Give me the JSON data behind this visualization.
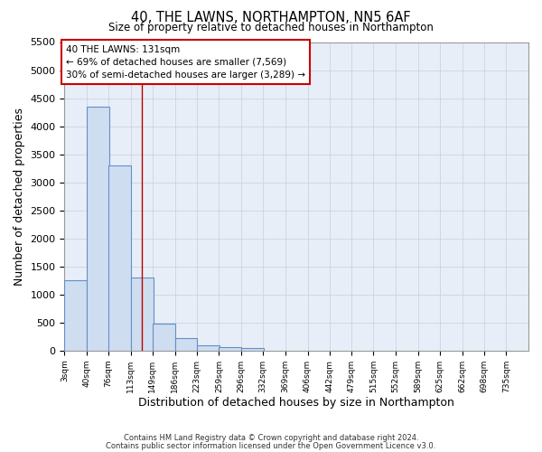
{
  "title1": "40, THE LAWNS, NORTHAMPTON, NN5 6AF",
  "title2": "Size of property relative to detached houses in Northampton",
  "xlabel": "Distribution of detached houses by size in Northampton",
  "ylabel": "Number of detached properties",
  "footer1": "Contains HM Land Registry data © Crown copyright and database right 2024.",
  "footer2": "Contains public sector information licensed under the Open Government Licence v3.0.",
  "annotation_line1": "40 THE LAWNS: 131sqm",
  "annotation_line2": "← 69% of detached houses are smaller (7,569)",
  "annotation_line3": "30% of semi-detached houses are larger (3,289) →",
  "bar_color": "#cfddf0",
  "bar_edge_color": "#6090c8",
  "grid_color": "#c8d4e4",
  "vline_color": "#bb0000",
  "vline_x": 131,
  "categories": [
    "3sqm",
    "40sqm",
    "76sqm",
    "113sqm",
    "149sqm",
    "186sqm",
    "223sqm",
    "259sqm",
    "296sqm",
    "332sqm",
    "369sqm",
    "406sqm",
    "442sqm",
    "479sqm",
    "515sqm",
    "552sqm",
    "589sqm",
    "625sqm",
    "662sqm",
    "698sqm",
    "735sqm"
  ],
  "bin_edges": [
    3,
    40,
    76,
    113,
    149,
    186,
    223,
    259,
    296,
    332,
    369,
    406,
    442,
    479,
    515,
    552,
    589,
    625,
    662,
    698,
    735
  ],
  "bin_width": 37,
  "values": [
    1250,
    4350,
    3300,
    1300,
    480,
    230,
    90,
    65,
    50,
    0,
    0,
    0,
    0,
    0,
    0,
    0,
    0,
    0,
    0,
    0,
    0
  ],
  "ylim": [
    0,
    5500
  ],
  "yticks": [
    0,
    500,
    1000,
    1500,
    2000,
    2500,
    3000,
    3500,
    4000,
    4500,
    5000,
    5500
  ],
  "fig_bg": "#ffffff",
  "plot_bg": "#e8eef8"
}
